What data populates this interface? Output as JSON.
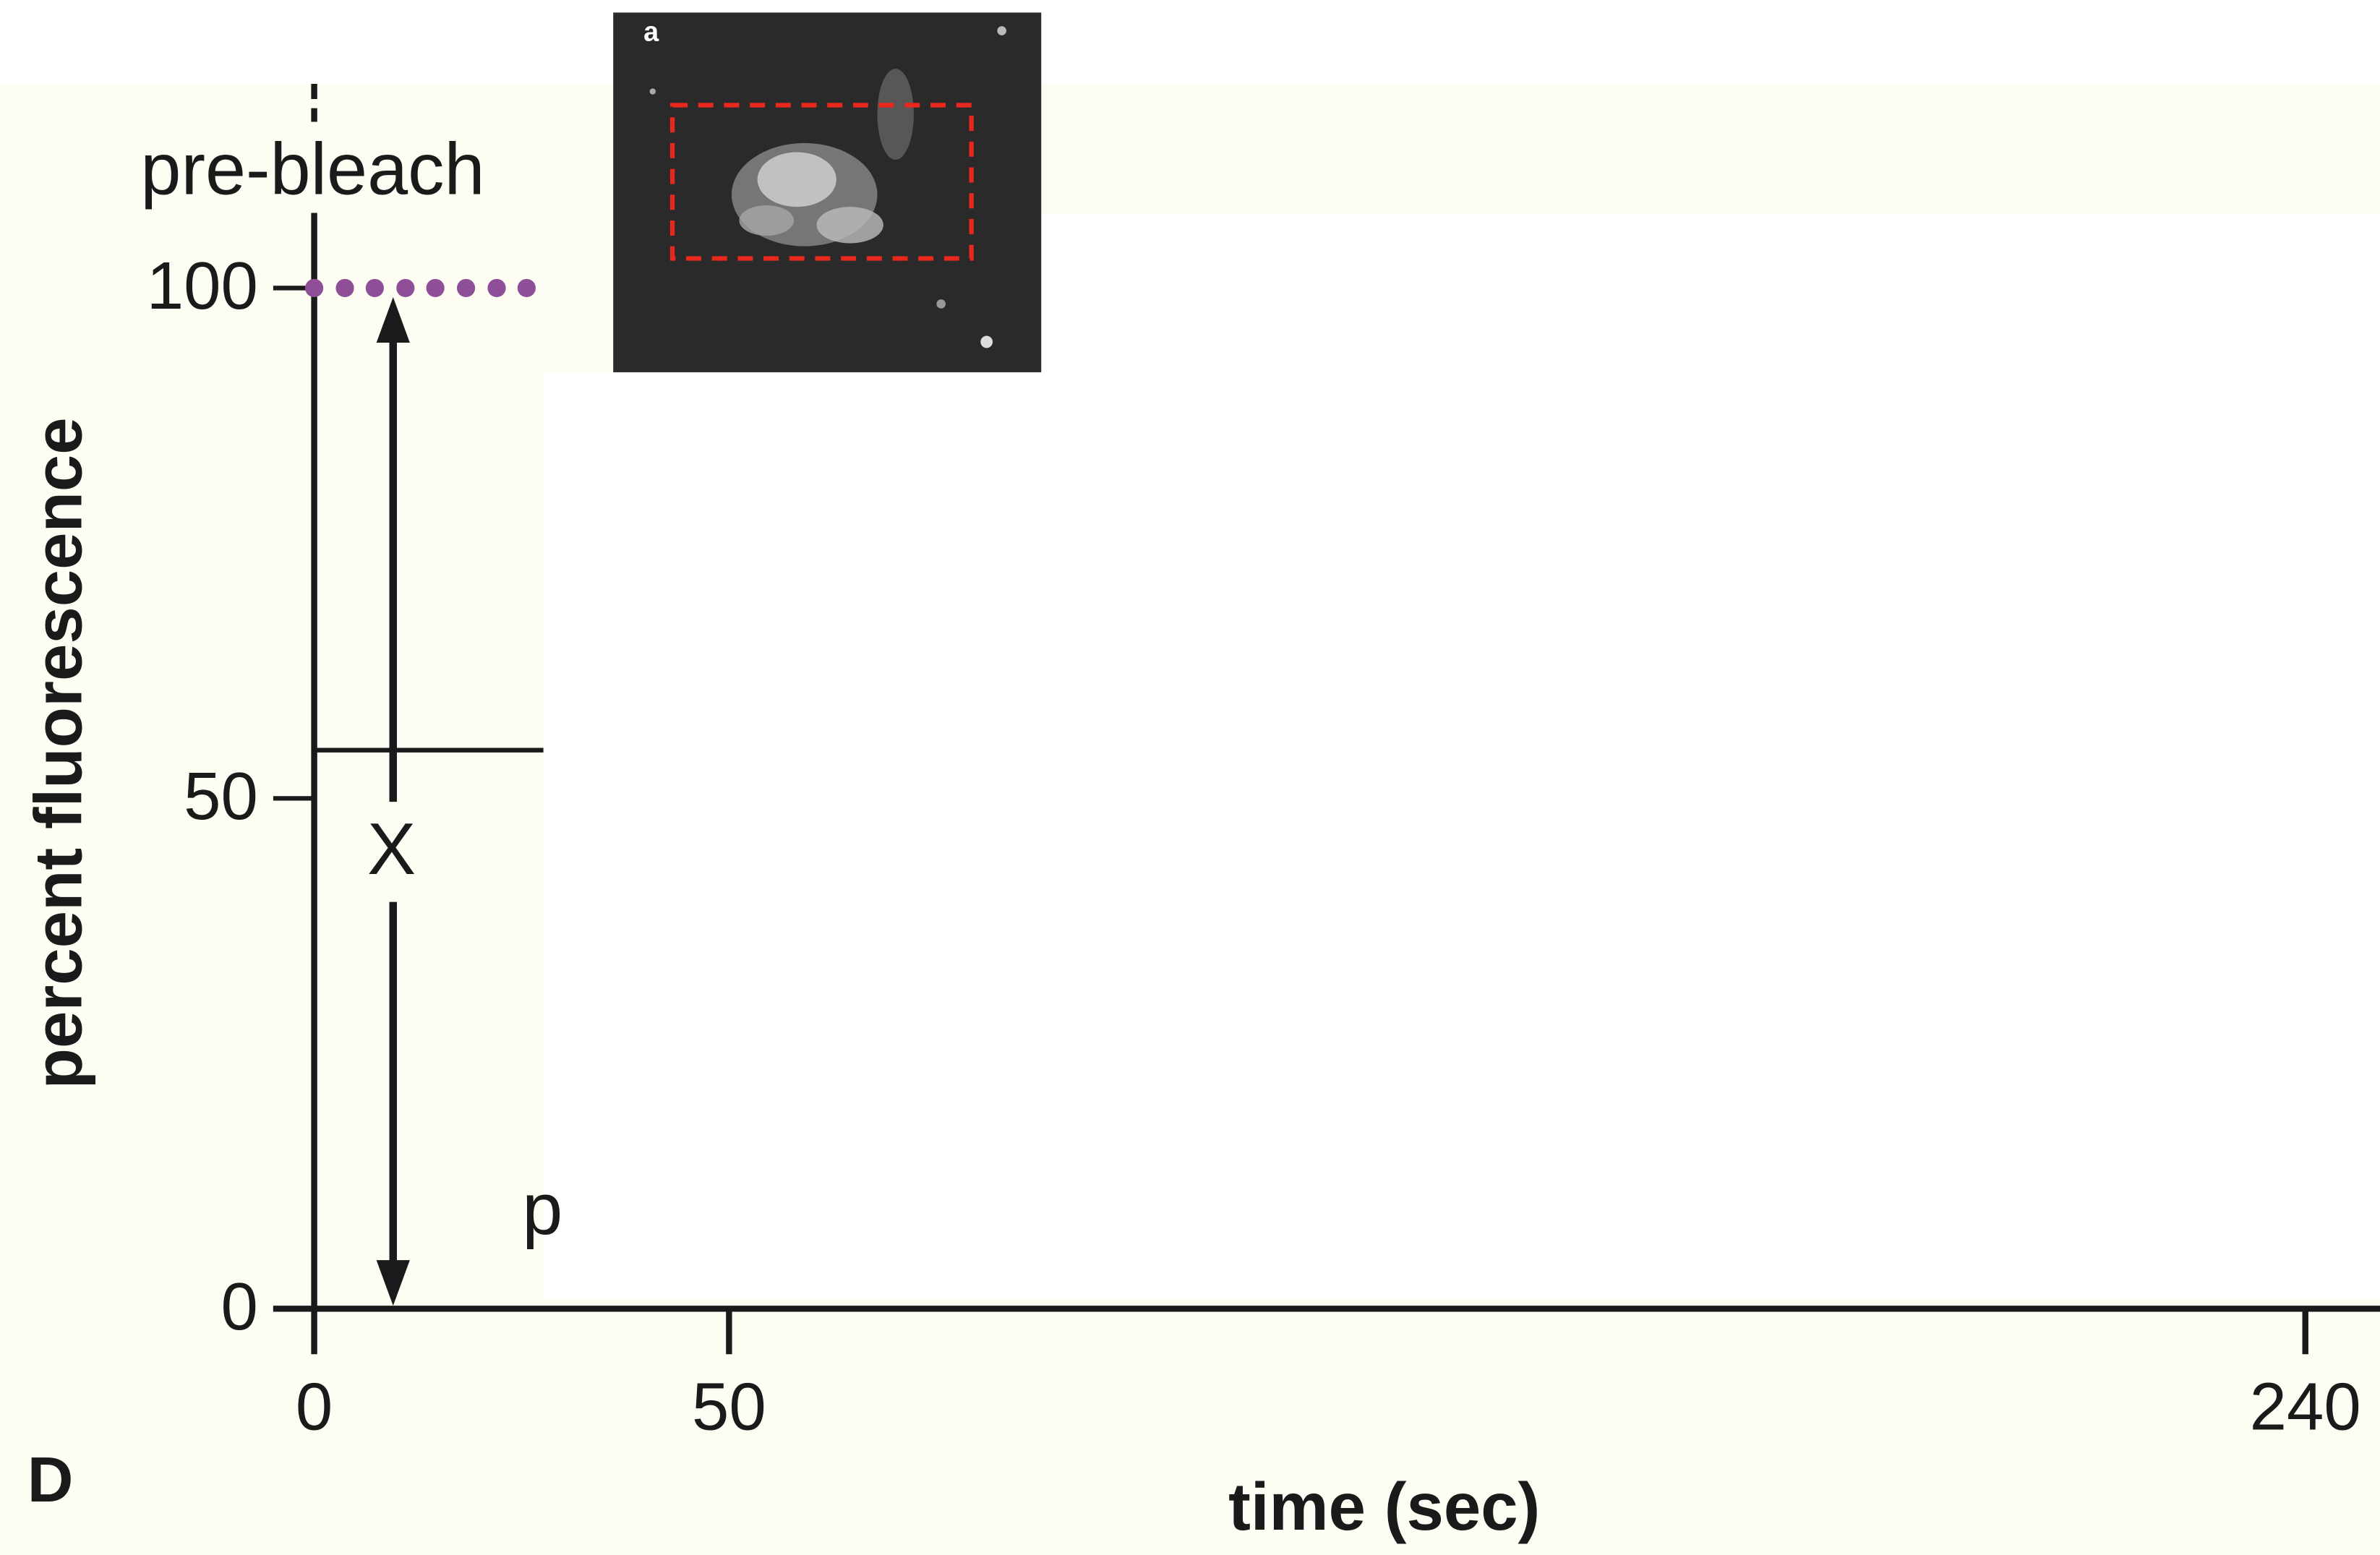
{
  "chart_data": {
    "type": "line",
    "panel_label": "D",
    "inset_label": "a",
    "xlabel": "time (sec)",
    "ylabel": "percent fluorescence",
    "annotations": [
      "pre-bleach",
      "X",
      "p"
    ],
    "x": [
      0,
      3.7,
      7.3,
      11,
      14.6,
      18.3,
      22,
      25.6
    ],
    "values": [
      100,
      100,
      100,
      100,
      100,
      100,
      100,
      100
    ],
    "color": "#8e4f98",
    "marker": "dots",
    "xlim": [
      0,
      249
    ],
    "ylim": [
      0,
      120
    ],
    "xticks": [
      0,
      50,
      240
    ],
    "yticks": [
      0,
      50,
      100
    ]
  }
}
